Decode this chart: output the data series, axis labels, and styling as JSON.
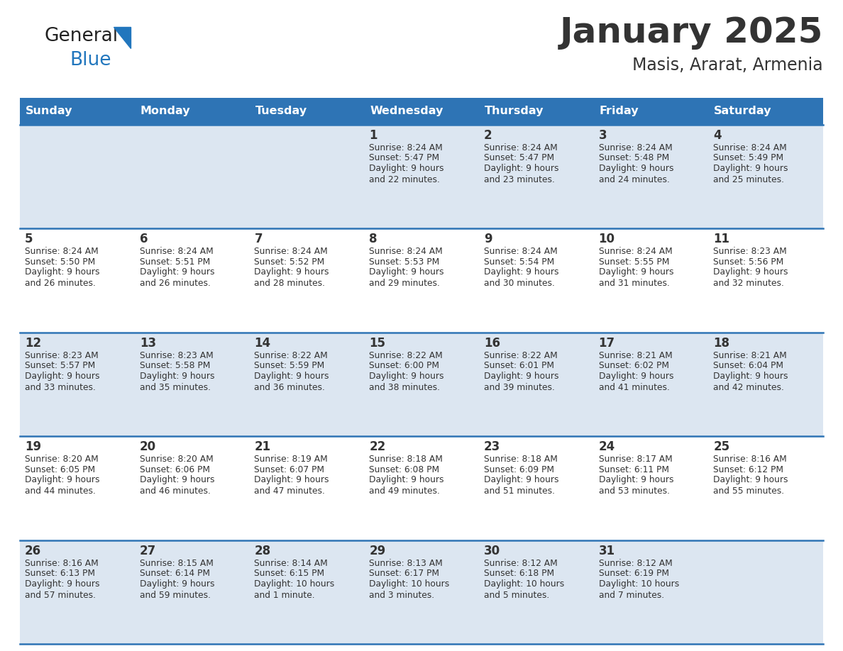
{
  "title": "January 2025",
  "subtitle": "Masis, Ararat, Armenia",
  "header_bg_color": "#2e74b5",
  "header_text_color": "#ffffff",
  "day_names": [
    "Sunday",
    "Monday",
    "Tuesday",
    "Wednesday",
    "Thursday",
    "Friday",
    "Saturday"
  ],
  "row_bg_even": "#dce6f1",
  "row_bg_odd": "#ffffff",
  "cell_text_color": "#333333",
  "day_num_color": "#333333",
  "divider_color": "#2e74b5",
  "logo_general_color": "#222222",
  "logo_blue_color": "#2176bd",
  "weeks": [
    [
      {
        "day": "",
        "sunrise": "",
        "sunset": "",
        "daylight": ""
      },
      {
        "day": "",
        "sunrise": "",
        "sunset": "",
        "daylight": ""
      },
      {
        "day": "",
        "sunrise": "",
        "sunset": "",
        "daylight": ""
      },
      {
        "day": "1",
        "sunrise": "8:24 AM",
        "sunset": "5:47 PM",
        "daylight": "9 hours\nand 22 minutes."
      },
      {
        "day": "2",
        "sunrise": "8:24 AM",
        "sunset": "5:47 PM",
        "daylight": "9 hours\nand 23 minutes."
      },
      {
        "day": "3",
        "sunrise": "8:24 AM",
        "sunset": "5:48 PM",
        "daylight": "9 hours\nand 24 minutes."
      },
      {
        "day": "4",
        "sunrise": "8:24 AM",
        "sunset": "5:49 PM",
        "daylight": "9 hours\nand 25 minutes."
      }
    ],
    [
      {
        "day": "5",
        "sunrise": "8:24 AM",
        "sunset": "5:50 PM",
        "daylight": "9 hours\nand 26 minutes."
      },
      {
        "day": "6",
        "sunrise": "8:24 AM",
        "sunset": "5:51 PM",
        "daylight": "9 hours\nand 26 minutes."
      },
      {
        "day": "7",
        "sunrise": "8:24 AM",
        "sunset": "5:52 PM",
        "daylight": "9 hours\nand 28 minutes."
      },
      {
        "day": "8",
        "sunrise": "8:24 AM",
        "sunset": "5:53 PM",
        "daylight": "9 hours\nand 29 minutes."
      },
      {
        "day": "9",
        "sunrise": "8:24 AM",
        "sunset": "5:54 PM",
        "daylight": "9 hours\nand 30 minutes."
      },
      {
        "day": "10",
        "sunrise": "8:24 AM",
        "sunset": "5:55 PM",
        "daylight": "9 hours\nand 31 minutes."
      },
      {
        "day": "11",
        "sunrise": "8:23 AM",
        "sunset": "5:56 PM",
        "daylight": "9 hours\nand 32 minutes."
      }
    ],
    [
      {
        "day": "12",
        "sunrise": "8:23 AM",
        "sunset": "5:57 PM",
        "daylight": "9 hours\nand 33 minutes."
      },
      {
        "day": "13",
        "sunrise": "8:23 AM",
        "sunset": "5:58 PM",
        "daylight": "9 hours\nand 35 minutes."
      },
      {
        "day": "14",
        "sunrise": "8:22 AM",
        "sunset": "5:59 PM",
        "daylight": "9 hours\nand 36 minutes."
      },
      {
        "day": "15",
        "sunrise": "8:22 AM",
        "sunset": "6:00 PM",
        "daylight": "9 hours\nand 38 minutes."
      },
      {
        "day": "16",
        "sunrise": "8:22 AM",
        "sunset": "6:01 PM",
        "daylight": "9 hours\nand 39 minutes."
      },
      {
        "day": "17",
        "sunrise": "8:21 AM",
        "sunset": "6:02 PM",
        "daylight": "9 hours\nand 41 minutes."
      },
      {
        "day": "18",
        "sunrise": "8:21 AM",
        "sunset": "6:04 PM",
        "daylight": "9 hours\nand 42 minutes."
      }
    ],
    [
      {
        "day": "19",
        "sunrise": "8:20 AM",
        "sunset": "6:05 PM",
        "daylight": "9 hours\nand 44 minutes."
      },
      {
        "day": "20",
        "sunrise": "8:20 AM",
        "sunset": "6:06 PM",
        "daylight": "9 hours\nand 46 minutes."
      },
      {
        "day": "21",
        "sunrise": "8:19 AM",
        "sunset": "6:07 PM",
        "daylight": "9 hours\nand 47 minutes."
      },
      {
        "day": "22",
        "sunrise": "8:18 AM",
        "sunset": "6:08 PM",
        "daylight": "9 hours\nand 49 minutes."
      },
      {
        "day": "23",
        "sunrise": "8:18 AM",
        "sunset": "6:09 PM",
        "daylight": "9 hours\nand 51 minutes."
      },
      {
        "day": "24",
        "sunrise": "8:17 AM",
        "sunset": "6:11 PM",
        "daylight": "9 hours\nand 53 minutes."
      },
      {
        "day": "25",
        "sunrise": "8:16 AM",
        "sunset": "6:12 PM",
        "daylight": "9 hours\nand 55 minutes."
      }
    ],
    [
      {
        "day": "26",
        "sunrise": "8:16 AM",
        "sunset": "6:13 PM",
        "daylight": "9 hours\nand 57 minutes."
      },
      {
        "day": "27",
        "sunrise": "8:15 AM",
        "sunset": "6:14 PM",
        "daylight": "9 hours\nand 59 minutes."
      },
      {
        "day": "28",
        "sunrise": "8:14 AM",
        "sunset": "6:15 PM",
        "daylight": "10 hours\nand 1 minute."
      },
      {
        "day": "29",
        "sunrise": "8:13 AM",
        "sunset": "6:17 PM",
        "daylight": "10 hours\nand 3 minutes."
      },
      {
        "day": "30",
        "sunrise": "8:12 AM",
        "sunset": "6:18 PM",
        "daylight": "10 hours\nand 5 minutes."
      },
      {
        "day": "31",
        "sunrise": "8:12 AM",
        "sunset": "6:19 PM",
        "daylight": "10 hours\nand 7 minutes."
      },
      {
        "day": "",
        "sunrise": "",
        "sunset": "",
        "daylight": ""
      }
    ]
  ]
}
